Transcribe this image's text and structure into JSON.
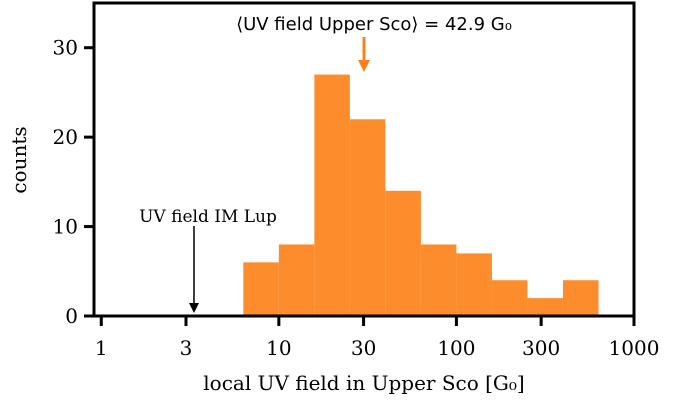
{
  "chart_data": {
    "type": "histogram",
    "bins": [
      6.31,
      10,
      15.85,
      25.12,
      39.81,
      63.1,
      100,
      158.5,
      251.2,
      398.1,
      631
    ],
    "values": [
      6,
      8,
      27,
      22,
      14,
      8,
      7,
      4,
      2,
      4
    ],
    "color": "#fd8d2c",
    "xlabel": "local UV field in Upper Sco [G₀]",
    "ylabel": "counts",
    "xscale": "log",
    "xlim": [
      0.91,
      1000
    ],
    "xticks": [
      1,
      3,
      10,
      30,
      100,
      300,
      1000
    ],
    "ylim": [
      0,
      35
    ],
    "yticks": [
      0,
      10,
      20,
      30
    ],
    "annotations": [
      "⟨UV field Upper Sco⟩ = 42.9 G₀",
      "UV field IM Lup"
    ]
  }
}
